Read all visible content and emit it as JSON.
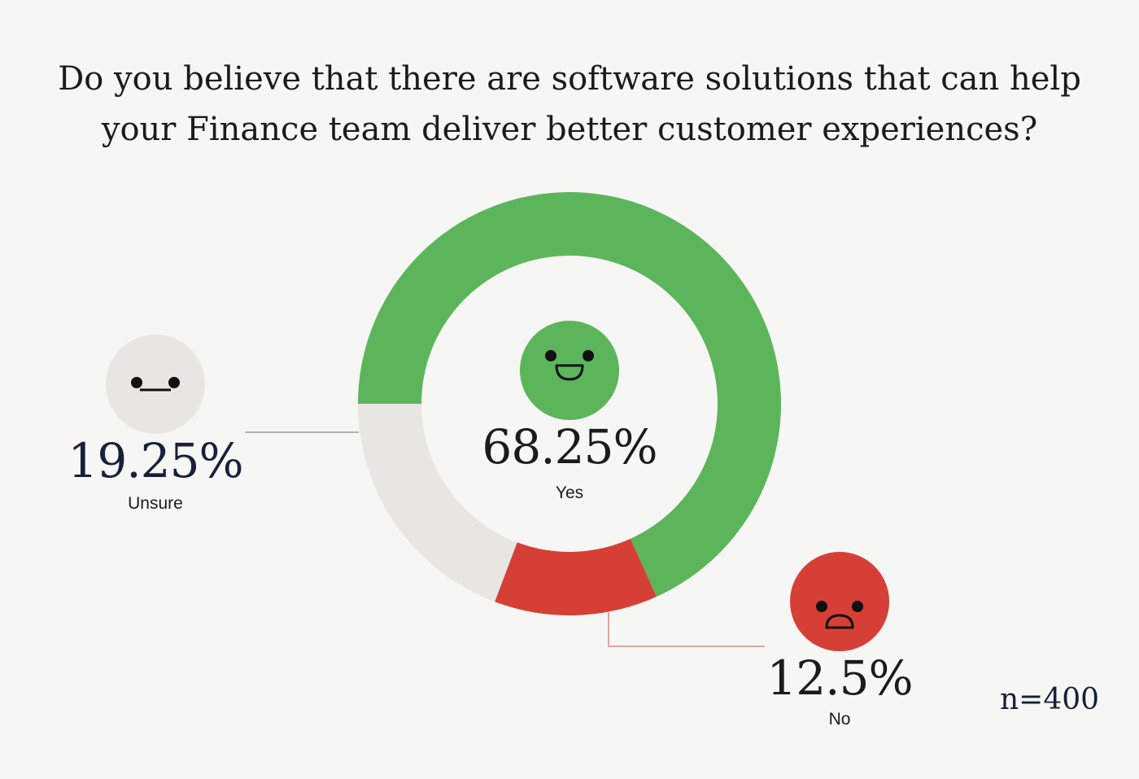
{
  "title_lines": [
    "Do you believe that there are software solutions that can help",
    "your Finance team deliver better customer experiences?"
  ],
  "chart_data": {
    "type": "pie",
    "variant": "donut",
    "categories": [
      "Yes",
      "No",
      "Unsure"
    ],
    "values": [
      68.25,
      12.5,
      19.25
    ],
    "value_labels": [
      "68.25%",
      "12.5%",
      "19.25%"
    ],
    "colors": [
      "#5cb55a",
      "#d63f35",
      "#e7e6e1"
    ],
    "sample_size": "n=400",
    "legend_placement": "none"
  },
  "colors": {
    "background": "#f6f6f4",
    "yes_face": "#5cb55a",
    "no_face": "#d63f35",
    "unsure_face": "#e7e6e1",
    "dark_text": "#17203a"
  },
  "icons": {
    "yes": "smiling-face-icon",
    "no": "frowning-face-icon",
    "unsure": "neutral-face-icon"
  }
}
